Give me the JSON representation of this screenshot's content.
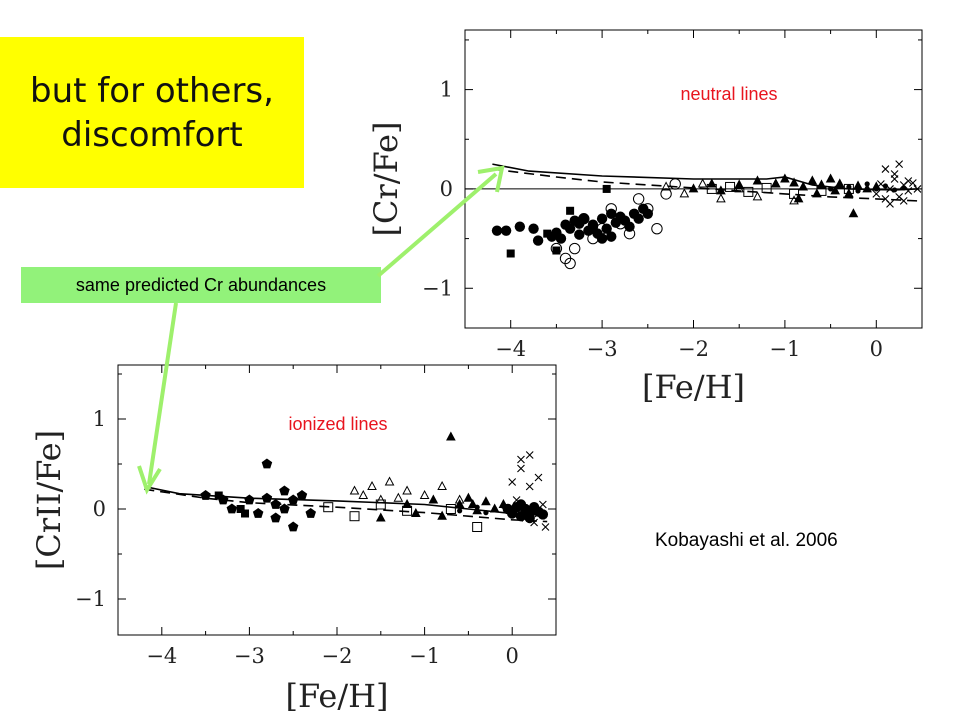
{
  "slide": {
    "headline": "but for others, discomfort",
    "note": "same predicted Cr abundances",
    "credit": "Kobayashi et al. 2006"
  },
  "colors": {
    "callout_bg": "#ffff00",
    "note_bg": "#92f27a",
    "arrow": "#9ef06c",
    "annotation": "#e8141e"
  },
  "chart_data": [
    {
      "type": "scatter",
      "title": "",
      "annotation": "neutral lines",
      "xlabel": "[Fe/H]",
      "ylabel": "[Cr/Fe]",
      "xlim": [
        -4.5,
        0.5
      ],
      "ylim": [
        -1.4,
        1.6
      ],
      "xticks": [
        -4,
        -3,
        -2,
        -1,
        0
      ],
      "xtick_labels": [
        "−4",
        "−3",
        "−2",
        "−1",
        "0"
      ],
      "yticks": [
        -1,
        0,
        1
      ],
      "ytick_labels": [
        "−1",
        "0",
        "1"
      ],
      "zero_line": true,
      "grid": false,
      "model_lines": [
        {
          "style": "solid",
          "x": [
            -4.2,
            -3.8,
            -3.0,
            -2.0,
            -1.2,
            -1.0,
            -0.7,
            -0.3,
            0.2,
            0.45
          ],
          "y": [
            0.25,
            0.18,
            0.13,
            0.1,
            0.1,
            0.12,
            0.04,
            0.0,
            -0.01,
            0.0
          ]
        },
        {
          "style": "dashed",
          "x": [
            -4.2,
            -3.5,
            -3.0,
            -2.0,
            -1.0,
            -0.5,
            0.0,
            0.45
          ],
          "y": [
            0.2,
            0.12,
            0.07,
            0.01,
            -0.05,
            -0.08,
            -0.1,
            -0.12
          ]
        }
      ],
      "series": [
        {
          "marker": "circle-filled",
          "x": [
            -4.15,
            -4.05,
            -3.9,
            -3.75,
            -3.7,
            -3.55,
            -3.5,
            -3.45,
            -3.4,
            -3.35,
            -3.3,
            -3.25,
            -3.2,
            -3.15,
            -3.1,
            -3.05,
            -3.0,
            -2.95,
            -2.9,
            -2.85,
            -2.8,
            -2.75,
            -2.7,
            -2.65,
            -2.6,
            -3.0,
            -2.9,
            -3.1,
            -3.25,
            -2.55,
            -2.5
          ],
          "y": [
            -0.42,
            -0.42,
            -0.38,
            -0.4,
            -0.52,
            -0.48,
            -0.44,
            -0.5,
            -0.36,
            -0.4,
            -0.32,
            -0.35,
            -0.3,
            -0.42,
            -0.36,
            -0.45,
            -0.3,
            -0.4,
            -0.25,
            -0.34,
            -0.28,
            -0.32,
            -0.38,
            -0.25,
            -0.3,
            -0.5,
            -0.48,
            -0.38,
            -0.46,
            -0.2,
            -0.25
          ]
        },
        {
          "marker": "circle-open",
          "x": [
            -3.5,
            -3.4,
            -3.3,
            -3.2,
            -3.1,
            -3.0,
            -2.9,
            -2.8,
            -2.7,
            -2.6,
            -2.5,
            -2.4,
            -2.3,
            -2.2,
            -3.35
          ],
          "y": [
            -0.6,
            -0.7,
            -0.6,
            -0.3,
            -0.5,
            -0.4,
            -0.2,
            -0.35,
            -0.45,
            -0.1,
            -0.2,
            -0.4,
            -0.05,
            0.05,
            -0.75
          ]
        },
        {
          "marker": "square-filled",
          "x": [
            -4.0,
            -3.6,
            -3.5,
            -3.35,
            -2.95
          ],
          "y": [
            -0.65,
            -0.45,
            -0.62,
            -0.22,
            0.0
          ]
        },
        {
          "marker": "square-open",
          "x": [
            -1.8,
            -1.6,
            -1.4,
            -1.2,
            -0.9,
            -0.6,
            -0.3
          ],
          "y": [
            0.0,
            0.02,
            -0.03,
            0.01,
            -0.05,
            -0.02,
            0.0
          ]
        },
        {
          "marker": "triangle-filled",
          "x": [
            -2.0,
            -1.8,
            -1.7,
            -1.5,
            -1.3,
            -1.1,
            -1.0,
            -0.9,
            -0.8,
            -0.7,
            -0.6,
            -0.5,
            -0.4,
            -0.3,
            -0.2,
            -0.1,
            0.0,
            -0.85,
            -0.65,
            -0.45,
            -0.25
          ],
          "y": [
            0.0,
            0.05,
            -0.02,
            0.04,
            0.08,
            0.05,
            0.1,
            0.06,
            0.02,
            0.08,
            0.04,
            0.1,
            0.05,
            -0.05,
            0.03,
            0.0,
            0.02,
            -0.1,
            -0.05,
            -0.02,
            -0.25
          ]
        },
        {
          "marker": "triangle-open",
          "x": [
            -2.3,
            -2.1,
            -1.9,
            -1.7,
            -1.5,
            -1.3,
            -1.1,
            -0.9
          ],
          "y": [
            0.02,
            -0.05,
            0.05,
            -0.1,
            0.0,
            -0.08,
            0.05,
            -0.12
          ]
        },
        {
          "marker": "cross",
          "x": [
            0.0,
            0.05,
            0.1,
            0.15,
            0.2,
            0.25,
            0.3,
            0.35,
            0.4,
            0.45,
            0.1,
            0.2,
            0.3,
            0.15,
            0.35,
            0.25
          ],
          "y": [
            -0.05,
            0.05,
            -0.1,
            0.0,
            0.1,
            -0.08,
            0.04,
            -0.02,
            0.06,
            0.0,
            0.2,
            0.15,
            -0.12,
            -0.15,
            0.08,
            0.25
          ]
        },
        {
          "marker": "dot",
          "x": [
            -0.5,
            -0.3,
            -0.2,
            -0.1,
            0.0,
            0.1,
            0.2,
            0.3
          ],
          "y": [
            0.0,
            0.02,
            -0.02,
            0.05,
            0.0,
            0.03,
            -0.01,
            0.01
          ]
        }
      ]
    },
    {
      "type": "scatter",
      "title": "",
      "annotation": "ionized lines",
      "xlabel": "[Fe/H]",
      "ylabel": "[CrII/Fe]",
      "xlim": [
        -4.5,
        0.5
      ],
      "ylim": [
        -1.4,
        1.6
      ],
      "xticks": [
        -4,
        -3,
        -2,
        -1,
        0
      ],
      "xtick_labels": [
        "−4",
        "−3",
        "−2",
        "−1",
        "0"
      ],
      "yticks": [
        -1,
        0,
        1
      ],
      "ytick_labels": [
        "−1",
        "0",
        "1"
      ],
      "zero_line": false,
      "grid": false,
      "model_lines": [
        {
          "style": "solid",
          "x": [
            -4.2,
            -3.8,
            -3.0,
            -2.0,
            -1.0,
            -0.5,
            0.0,
            0.4
          ],
          "y": [
            0.25,
            0.17,
            0.12,
            0.09,
            0.05,
            0.0,
            -0.05,
            -0.06
          ]
        },
        {
          "style": "dashed",
          "x": [
            -4.2,
            -3.5,
            -3.0,
            -2.0,
            -1.0,
            -0.5,
            0.0,
            0.4
          ],
          "y": [
            0.22,
            0.12,
            0.07,
            0.02,
            -0.04,
            -0.08,
            -0.12,
            -0.14
          ]
        }
      ],
      "series": [
        {
          "marker": "pentagon-filled",
          "x": [
            -3.5,
            -3.3,
            -3.2,
            -3.0,
            -2.9,
            -2.8,
            -2.7,
            -2.6,
            -2.5,
            -2.4,
            -2.8,
            -2.7,
            -2.6,
            -2.5,
            -2.3
          ],
          "y": [
            0.15,
            0.1,
            0.0,
            0.1,
            -0.05,
            0.12,
            0.05,
            0.2,
            0.1,
            0.15,
            0.5,
            -0.1,
            0.0,
            -0.2,
            -0.05
          ]
        },
        {
          "marker": "square-filled",
          "x": [
            -3.35,
            -3.1,
            -3.05
          ],
          "y": [
            0.15,
            0.0,
            -0.05
          ]
        },
        {
          "marker": "square-open",
          "x": [
            -2.1,
            -1.8,
            -1.5,
            -1.2,
            -0.7,
            -0.4
          ],
          "y": [
            0.02,
            -0.08,
            0.05,
            -0.02,
            0.0,
            -0.2
          ]
        },
        {
          "marker": "triangle-open",
          "x": [
            -1.8,
            -1.7,
            -1.6,
            -1.5,
            -1.4,
            -1.3,
            -1.2,
            -1.0,
            -0.8,
            -0.6
          ],
          "y": [
            0.2,
            0.15,
            0.25,
            0.1,
            0.3,
            0.12,
            0.2,
            0.15,
            0.25,
            0.1
          ]
        },
        {
          "marker": "triangle-filled",
          "x": [
            -1.5,
            -1.2,
            -1.1,
            -0.9,
            -0.8,
            -0.6,
            -0.5,
            -0.4,
            -0.3,
            -0.2,
            -0.1,
            -0.7,
            -0.45
          ],
          "y": [
            -0.1,
            0.05,
            -0.05,
            0.1,
            -0.08,
            0.05,
            0.12,
            -0.02,
            0.08,
            0.0,
            0.05,
            0.8,
            0.05
          ]
        },
        {
          "marker": "cross",
          "x": [
            0.0,
            0.1,
            0.2,
            0.3,
            0.15,
            0.25,
            0.05,
            0.35,
            0.1,
            0.2,
            0.3,
            0.38
          ],
          "y": [
            0.3,
            0.45,
            0.6,
            0.35,
            -0.1,
            -0.15,
            0.1,
            0.05,
            0.55,
            0.25,
            -0.05,
            -0.2
          ]
        },
        {
          "marker": "circle-filled",
          "x": [
            -0.05,
            0.0,
            0.05,
            0.1,
            0.15,
            0.2,
            0.25,
            0.3,
            0.35,
            0.1,
            0.2
          ],
          "y": [
            0.0,
            -0.05,
            0.02,
            -0.08,
            0.0,
            -0.05,
            0.02,
            -0.03,
            -0.06,
            0.05,
            -0.1
          ]
        },
        {
          "marker": "dot",
          "x": [
            -0.6,
            -0.4,
            -0.3,
            -0.2,
            -0.1
          ],
          "y": [
            -0.02,
            0.02,
            -0.04,
            0.0,
            0.03
          ]
        }
      ]
    }
  ]
}
